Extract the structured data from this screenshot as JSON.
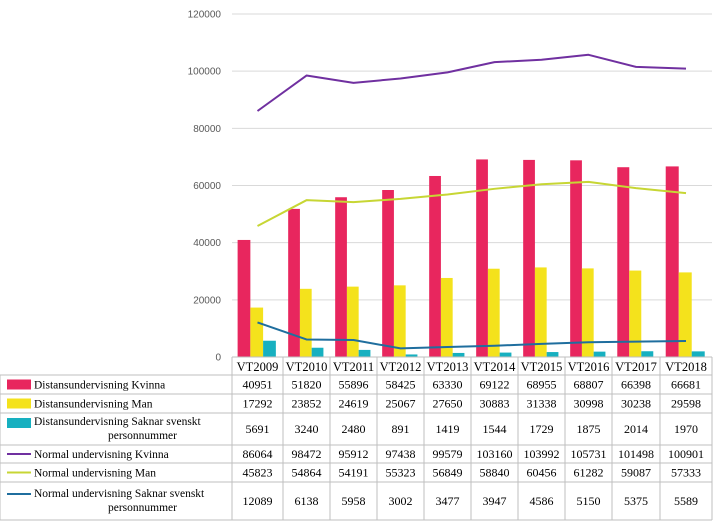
{
  "chart_data": {
    "type": "bar",
    "categories": [
      "VT2009",
      "VT2010",
      "VT2011",
      "VT2012",
      "VT2013",
      "VT2014",
      "VT2015",
      "VT2016",
      "VT2017",
      "VT2018"
    ],
    "ylim": [
      0,
      120000
    ],
    "yticks": [
      0,
      20000,
      40000,
      60000,
      80000,
      100000,
      120000
    ],
    "ytick_labels": [
      "0",
      "20000",
      "40000",
      "60000",
      "80000",
      "100000",
      "120000"
    ],
    "grid": true,
    "legend": "data-table-below",
    "series": [
      {
        "name": "Distansundervisning Kvinna",
        "kind": "bar",
        "color": "#E8265E",
        "values": [
          40951,
          51820,
          55896,
          58425,
          63330,
          69122,
          68955,
          68807,
          66398,
          66681
        ],
        "labels": [
          "40951",
          "51820",
          "55896",
          "58425",
          "63330",
          "69122",
          "68955",
          "68807",
          "66398",
          "66681"
        ]
      },
      {
        "name": "Distansundervisning Man",
        "kind": "bar",
        "color": "#F4E21C",
        "values": [
          17292,
          23852,
          24619,
          25067,
          27650,
          30883,
          31338,
          30998,
          30238,
          29598
        ],
        "labels": [
          "17292",
          "23852",
          "24619",
          "25067",
          "27650",
          "30883",
          "31338",
          "30998",
          "30238",
          "29598"
        ]
      },
      {
        "name": "Distansundervisning Saknar svenskt personnummer",
        "name_lines": [
          "Distansundervisning Saknar svenskt",
          "personnummer"
        ],
        "kind": "bar",
        "color": "#17B0C0",
        "values": [
          5691,
          3240,
          2480,
          891,
          1419,
          1544,
          1729,
          1875,
          2014,
          1970
        ],
        "labels": [
          "5691",
          "3240",
          "2480",
          "891",
          "1419",
          "1544",
          "1729",
          "1875",
          "2014",
          "1970"
        ]
      },
      {
        "name": "Normal undervisning Kvinna",
        "kind": "line",
        "color": "#7030A0",
        "values": [
          86064,
          98472,
          95912,
          97438,
          99579,
          103160,
          103992,
          105731,
          101498,
          100901
        ],
        "labels": [
          "86064",
          "98472",
          "95912",
          "97438",
          "99579",
          "103160",
          "103992",
          "105731",
          "101498",
          "100901"
        ]
      },
      {
        "name": "Normal undervisning Man",
        "kind": "line",
        "color": "#C7D634",
        "values": [
          45823,
          54864,
          54191,
          55323,
          56849,
          58840,
          60456,
          61282,
          59087,
          57333
        ],
        "labels": [
          "45823",
          "54864",
          "54191",
          "55323",
          "56849",
          "58840",
          "60456",
          "61282",
          "59087",
          "57333"
        ]
      },
      {
        "name": "Normal undervisning Saknar svenskt personnummer",
        "name_lines": [
          "Normal undervisning Saknar svenskt",
          "personnummer"
        ],
        "kind": "line",
        "color": "#1F6E9E",
        "values": [
          12089,
          6138,
          5958,
          3002,
          3477,
          3947,
          4586,
          5150,
          5375,
          5589
        ],
        "labels": [
          "12089",
          "6138",
          "5958",
          "3002",
          "3477",
          "3947",
          "4586",
          "5150",
          "5375",
          "5589"
        ]
      }
    ]
  }
}
